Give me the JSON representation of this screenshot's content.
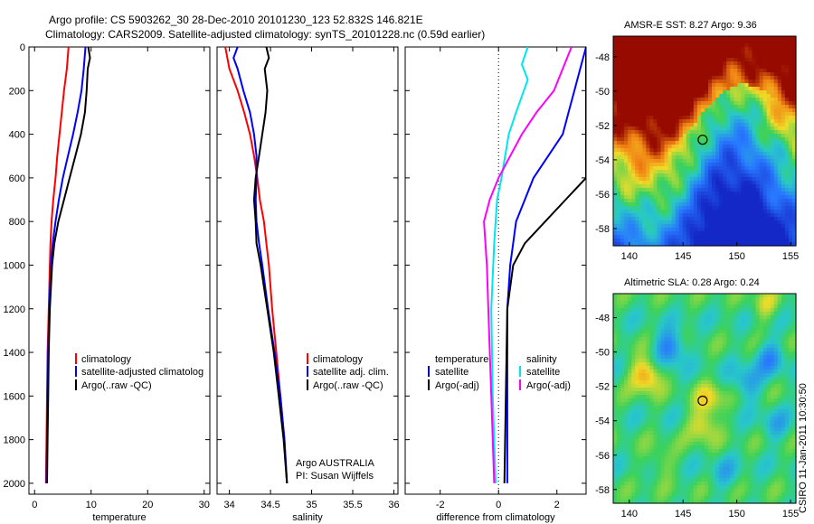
{
  "title": {
    "line1": "Argo profile: CS 5903262_30 28-Dec-2010 20101230_123 52.832S 146.821E",
    "line2": "Climatology: CARS2009. Satellite-adjusted climatology: synTS_20101228.nc (0.59d earlier)"
  },
  "side_stamp": "CSIRO 11-Jan-2011 10:30:50",
  "colors": {
    "climatology": "#ff0000",
    "satellite": "#0000ff",
    "argo": "#000000",
    "cyan": "#00e5ee",
    "magenta": "#ff00ff"
  },
  "chart_data": [
    {
      "type": "line",
      "name": "temperature_panel",
      "xlabel": "temperature",
      "xlim": [
        -1,
        31
      ],
      "ylim": [
        2050,
        0
      ],
      "xticks": [
        "0",
        "10",
        "20",
        "30"
      ],
      "xtick_values": [
        0,
        10,
        20,
        30
      ],
      "yticks": [
        "0",
        "200",
        "400",
        "600",
        "800",
        "1000",
        "1200",
        "1400",
        "1600",
        "1800",
        "2000"
      ],
      "ytick_values": [
        0,
        200,
        400,
        600,
        800,
        1000,
        1200,
        1400,
        1600,
        1800,
        2000
      ],
      "legend": [
        "climatology",
        "satellite-adjusted climatolog",
        "Argo(..raw -QC)"
      ],
      "series": [
        {
          "name": "climatology",
          "color_key": "climatology",
          "points": [
            [
              6.0,
              0
            ],
            [
              5.7,
              100
            ],
            [
              5.2,
              200
            ],
            [
              4.8,
              300
            ],
            [
              4.4,
              400
            ],
            [
              4.0,
              500
            ],
            [
              3.7,
              600
            ],
            [
              3.3,
              700
            ],
            [
              3.0,
              800
            ],
            [
              2.8,
              900
            ],
            [
              2.7,
              1000
            ],
            [
              2.5,
              1200
            ],
            [
              2.3,
              1400
            ],
            [
              2.2,
              1600
            ],
            [
              2.1,
              1800
            ],
            [
              2.0,
              2000
            ]
          ]
        },
        {
          "name": "satellite-adjusted climatolog",
          "color_key": "satellite",
          "points": [
            [
              9.0,
              0
            ],
            [
              8.7,
              100
            ],
            [
              8.3,
              200
            ],
            [
              7.6,
              300
            ],
            [
              6.8,
              400
            ],
            [
              5.9,
              500
            ],
            [
              5.0,
              600
            ],
            [
              4.3,
              700
            ],
            [
              3.7,
              800
            ],
            [
              3.2,
              900
            ],
            [
              2.9,
              1000
            ],
            [
              2.6,
              1200
            ],
            [
              2.4,
              1400
            ],
            [
              2.3,
              1600
            ],
            [
              2.2,
              1800
            ],
            [
              2.1,
              2000
            ]
          ]
        },
        {
          "name": "Argo(..raw -QC)",
          "color_key": "argo",
          "points": [
            [
              9.5,
              0
            ],
            [
              9.8,
              50
            ],
            [
              9.4,
              100
            ],
            [
              9.2,
              200
            ],
            [
              8.9,
              300
            ],
            [
              8.2,
              400
            ],
            [
              7.2,
              500
            ],
            [
              6.2,
              600
            ],
            [
              5.2,
              700
            ],
            [
              4.2,
              800
            ],
            [
              3.5,
              900
            ],
            [
              3.1,
              1000
            ],
            [
              2.7,
              1200
            ],
            [
              2.5,
              1400
            ],
            [
              2.4,
              1600
            ],
            [
              2.3,
              1800
            ],
            [
              2.2,
              2000
            ]
          ]
        }
      ]
    },
    {
      "type": "line",
      "name": "salinity_panel",
      "xlabel": "salinity",
      "xlim": [
        33.85,
        36.05
      ],
      "ylim": [
        2050,
        0
      ],
      "xticks": [
        "34",
        "34.5",
        "35",
        "35.5",
        "36"
      ],
      "xtick_values": [
        34,
        34.5,
        35,
        35.5,
        36
      ],
      "legend": [
        "climatology",
        "satellite adj. clim.",
        "Argo(..raw -QC)"
      ],
      "annotation": [
        "Argo AUSTRALIA",
        "PI: Susan Wijffels"
      ],
      "series": [
        {
          "name": "climatology",
          "color_key": "climatology",
          "points": [
            [
              33.95,
              0
            ],
            [
              34.0,
              100
            ],
            [
              34.1,
              200
            ],
            [
              34.18,
              300
            ],
            [
              34.25,
              400
            ],
            [
              34.3,
              500
            ],
            [
              34.34,
              600
            ],
            [
              34.37,
              700
            ],
            [
              34.42,
              800
            ],
            [
              34.45,
              900
            ],
            [
              34.48,
              1000
            ],
            [
              34.52,
              1200
            ],
            [
              34.57,
              1400
            ],
            [
              34.62,
              1600
            ],
            [
              34.67,
              1800
            ],
            [
              34.7,
              2000
            ]
          ]
        },
        {
          "name": "satellite adj. clim.",
          "color_key": "satellite",
          "points": [
            [
              34.1,
              0
            ],
            [
              34.05,
              50
            ],
            [
              34.1,
              100
            ],
            [
              34.17,
              200
            ],
            [
              34.25,
              300
            ],
            [
              34.3,
              400
            ],
            [
              34.33,
              500
            ],
            [
              34.33,
              600
            ],
            [
              34.32,
              700
            ],
            [
              34.33,
              800
            ],
            [
              34.36,
              900
            ],
            [
              34.4,
              1000
            ],
            [
              34.47,
              1200
            ],
            [
              34.55,
              1400
            ],
            [
              34.62,
              1600
            ],
            [
              34.67,
              1800
            ],
            [
              34.7,
              2000
            ]
          ]
        },
        {
          "name": "Argo(..raw -QC)",
          "color_key": "argo",
          "points": [
            [
              34.45,
              0
            ],
            [
              34.48,
              50
            ],
            [
              34.43,
              100
            ],
            [
              34.46,
              200
            ],
            [
              34.44,
              300
            ],
            [
              34.4,
              400
            ],
            [
              34.36,
              500
            ],
            [
              34.32,
              600
            ],
            [
              34.3,
              700
            ],
            [
              34.32,
              800
            ],
            [
              34.33,
              900
            ],
            [
              34.38,
              1000
            ],
            [
              34.46,
              1200
            ],
            [
              34.54,
              1400
            ],
            [
              34.6,
              1600
            ],
            [
              34.66,
              1800
            ],
            [
              34.7,
              2000
            ]
          ]
        }
      ]
    },
    {
      "type": "line",
      "name": "difference_panel",
      "xlabel": "difference from climatology",
      "xlim": [
        -3.2,
        3.0
      ],
      "ylim": [
        2050,
        0
      ],
      "xticks": [
        "-2",
        "0",
        "2"
      ],
      "xtick_values": [
        -2,
        0,
        2
      ],
      "legend_left_header": "temperature",
      "legend_left": [
        "satellite",
        "Argo(-adj)"
      ],
      "legend_right_header": "salinity",
      "legend_right": [
        "satellite",
        "Argo(-adj)"
      ],
      "series": [
        {
          "name": "temperature satellite",
          "color_key": "satellite",
          "points": [
            [
              3.0,
              0
            ],
            [
              2.8,
              100
            ],
            [
              2.6,
              200
            ],
            [
              2.4,
              300
            ],
            [
              2.2,
              400
            ],
            [
              1.7,
              500
            ],
            [
              1.2,
              600
            ],
            [
              0.9,
              700
            ],
            [
              0.6,
              800
            ],
            [
              0.5,
              900
            ],
            [
              0.4,
              1000
            ],
            [
              0.3,
              1200
            ],
            [
              0.3,
              1600
            ],
            [
              0.3,
              2000
            ]
          ]
        },
        {
          "name": "temperature Argo(-adj)",
          "color_key": "argo",
          "points": [
            [
              3.0,
              0
            ],
            [
              3.0,
              600
            ],
            [
              2.3,
              700
            ],
            [
              1.6,
              800
            ],
            [
              0.9,
              900
            ],
            [
              0.5,
              1000
            ],
            [
              0.3,
              1200
            ],
            [
              0.25,
              1600
            ],
            [
              0.2,
              2000
            ]
          ]
        },
        {
          "name": "salinity satellite",
          "color_key": "cyan",
          "points": [
            [
              1.0,
              0
            ],
            [
              0.8,
              80
            ],
            [
              1.0,
              150
            ],
            [
              0.6,
              300
            ],
            [
              0.35,
              400
            ],
            [
              0.1,
              600
            ],
            [
              -0.05,
              700
            ],
            [
              -0.15,
              900
            ],
            [
              -0.25,
              1200
            ],
            [
              -0.2,
              1600
            ],
            [
              -0.1,
              2000
            ]
          ]
        },
        {
          "name": "salinity Argo(-adj)",
          "color_key": "magenta",
          "points": [
            [
              2.5,
              0
            ],
            [
              2.2,
              100
            ],
            [
              1.9,
              200
            ],
            [
              1.3,
              300
            ],
            [
              0.8,
              400
            ],
            [
              0.4,
              500
            ],
            [
              0.0,
              600
            ],
            [
              -0.3,
              700
            ],
            [
              -0.5,
              800
            ],
            [
              -0.45,
              900
            ],
            [
              -0.4,
              1000
            ],
            [
              -0.35,
              1200
            ],
            [
              -0.25,
              1600
            ],
            [
              -0.15,
              2000
            ]
          ]
        }
      ]
    },
    {
      "type": "heatmap",
      "name": "sst_map",
      "title": "AMSR-E SST: 8.27  Argo: 9.36",
      "xlim": [
        138.5,
        155.5
      ],
      "ylim": [
        -59,
        -46.8
      ],
      "xticks": [
        "140",
        "145",
        "150",
        "155"
      ],
      "xtick_values": [
        140,
        145,
        150,
        155
      ],
      "yticks": [
        "-48",
        "-50",
        "-52",
        "-54",
        "-56",
        "-58"
      ],
      "ytick_values": [
        -48,
        -50,
        -52,
        -54,
        -56,
        -58
      ],
      "marker": [
        146.82,
        -52.83
      ]
    },
    {
      "type": "heatmap",
      "name": "sla_map",
      "title": "Altimetric SLA: 0.28  Argo: 0.24",
      "xlim": [
        138.5,
        155.5
      ],
      "ylim": [
        -58.8,
        -46.6
      ],
      "xticks": [
        "140",
        "145",
        "150",
        "155"
      ],
      "xtick_values": [
        140,
        145,
        150,
        155
      ],
      "yticks": [
        "-48",
        "-50",
        "-52",
        "-54",
        "-56",
        "-58"
      ],
      "ytick_values": [
        -48,
        -50,
        -52,
        -54,
        -56,
        -58
      ],
      "marker": [
        146.82,
        -52.83
      ]
    }
  ]
}
